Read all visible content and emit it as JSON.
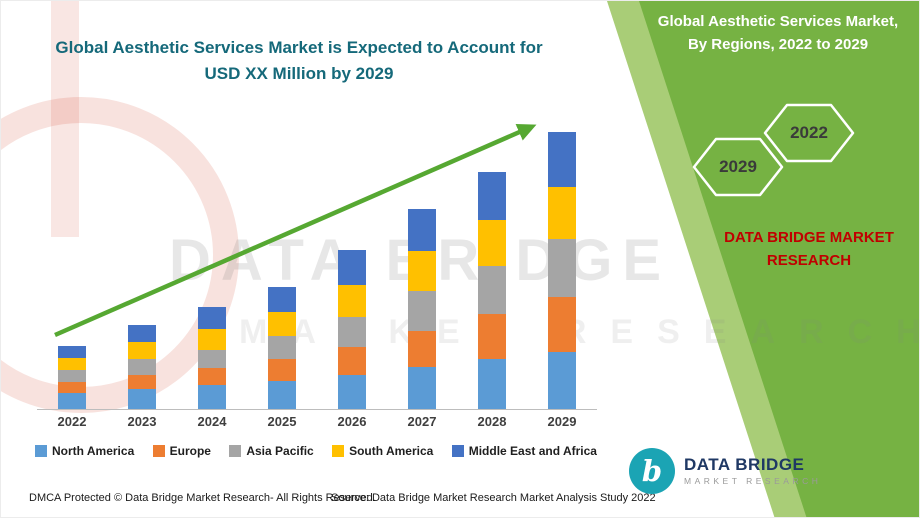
{
  "left_title": {
    "line1": "Global Aesthetic Services Market is Expected to Account for",
    "line2": "USD XX Million by 2029"
  },
  "green_panel": {
    "color": "#76B243",
    "stripe_color": "#A9CD77",
    "title_line1": "Global Aesthetic Services Market,",
    "title_line2": "By Regions, 2022 to 2029",
    "hexagons": [
      {
        "label": "2029"
      },
      {
        "label": "2022"
      }
    ],
    "brand_line1": "DATA BRIDGE MARKET",
    "brand_line2": "RESEARCH",
    "brand_color": "#C00000"
  },
  "watermark": {
    "line1": "DATA BRIDGE",
    "line2": "MARKET RESEARCH"
  },
  "colors": {
    "trend_arrow": "#56A832",
    "left_title": "#15697A"
  },
  "chart_data": {
    "type": "bar",
    "stacked": true,
    "title": "Global Aesthetic Services Market is Expected to Account for USD XX Million by 2029",
    "xlabel": "",
    "ylabel": "",
    "y_axis_visible": false,
    "legend_position": "bottom",
    "trend_arrow": true,
    "note": "No y-axis values shown (USD XX Million); segment values are relative units estimated from bar heights",
    "categories": [
      "2022",
      "2023",
      "2024",
      "2025",
      "2026",
      "2027",
      "2028",
      "2029"
    ],
    "series": [
      {
        "name": "North America",
        "color": "#5B9BD5",
        "values": [
          16,
          20,
          24,
          28,
          34,
          42,
          50,
          57
        ]
      },
      {
        "name": "Europe",
        "color": "#ED7D31",
        "values": [
          11,
          14,
          17,
          22,
          28,
          36,
          45,
          55
        ]
      },
      {
        "name": "Asia Pacific",
        "color": "#A5A5A5",
        "values": [
          12,
          16,
          18,
          23,
          30,
          40,
          48,
          58
        ]
      },
      {
        "name": "South America",
        "color": "#FFC000",
        "values": [
          12,
          17,
          21,
          24,
          32,
          40,
          46,
          52
        ]
      },
      {
        "name": "Middle East and Africa",
        "color": "#4472C4",
        "values": [
          12,
          17,
          22,
          25,
          35,
          42,
          48,
          55
        ]
      }
    ]
  },
  "footer": {
    "dmca": "DMCA Protected © Data Bridge Market Research- All Rights Reserved.",
    "source": "Source: Data Bridge Market Research Market Analysis Study 2022"
  },
  "logo": {
    "glyph": "b",
    "circle_color": "#1BA4B4",
    "name": "DATA BRIDGE",
    "name_color": "#1F3864",
    "tagline": "MARKET RESEARCH"
  }
}
